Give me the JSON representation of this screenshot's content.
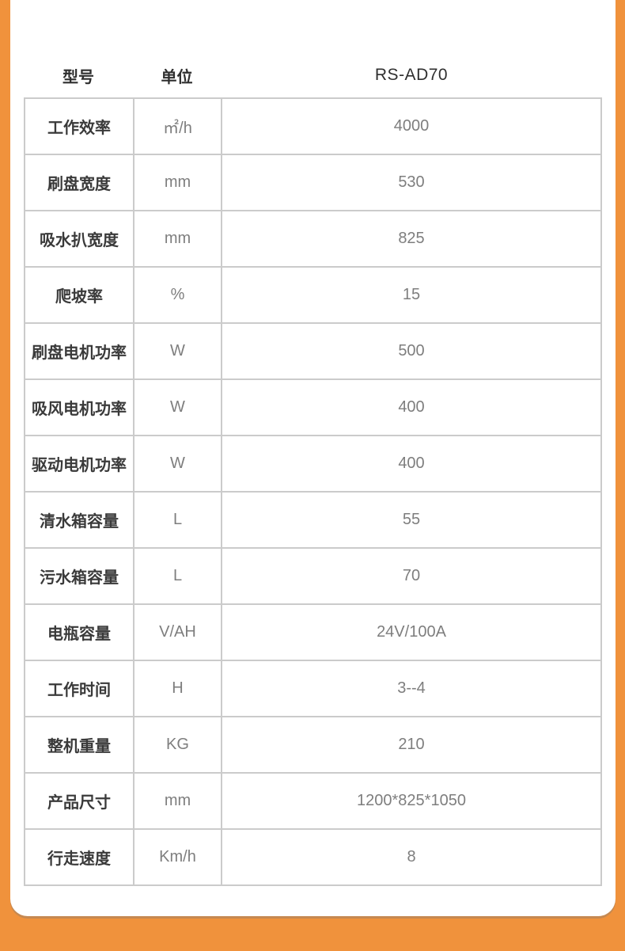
{
  "header": {
    "model_label": "型号",
    "unit_label": "单位",
    "model_value": "RS-AD70"
  },
  "table": {
    "rows": [
      {
        "name": "工作效率",
        "unit": "㎡/h",
        "value": "4000"
      },
      {
        "name": "刷盘宽度",
        "unit": "mm",
        "value": "530"
      },
      {
        "name": "吸水扒宽度",
        "unit": "mm",
        "value": "825"
      },
      {
        "name": "爬坡率",
        "unit": "%",
        "value": "15"
      },
      {
        "name": "刷盘电机功率",
        "unit": "W",
        "value": "500"
      },
      {
        "name": "吸风电机功率",
        "unit": "W",
        "value": "400"
      },
      {
        "name": "驱动电机功率",
        "unit": "W",
        "value": "400"
      },
      {
        "name": "清水箱容量",
        "unit": "L",
        "value": "55"
      },
      {
        "name": "污水箱容量",
        "unit": "L",
        "value": "70"
      },
      {
        "name": "电瓶容量",
        "unit": "V/AH",
        "value": "24V/100A"
      },
      {
        "name": "工作时间",
        "unit": "H",
        "value": "3--4"
      },
      {
        "name": "整机重量",
        "unit": "KG",
        "value": "210"
      },
      {
        "name": "产品尺寸",
        "unit": "mm",
        "value": "1200*825*1050"
      },
      {
        "name": "行走速度",
        "unit": "Km/h",
        "value": "8"
      }
    ]
  },
  "colors": {
    "background_orange": "#F0923C",
    "card_white": "#FFFFFF",
    "table_border": "#CBCBCB",
    "label_text": "#3A3A3A",
    "value_text": "#7E7E7E",
    "header_text": "#2F2F2F"
  }
}
